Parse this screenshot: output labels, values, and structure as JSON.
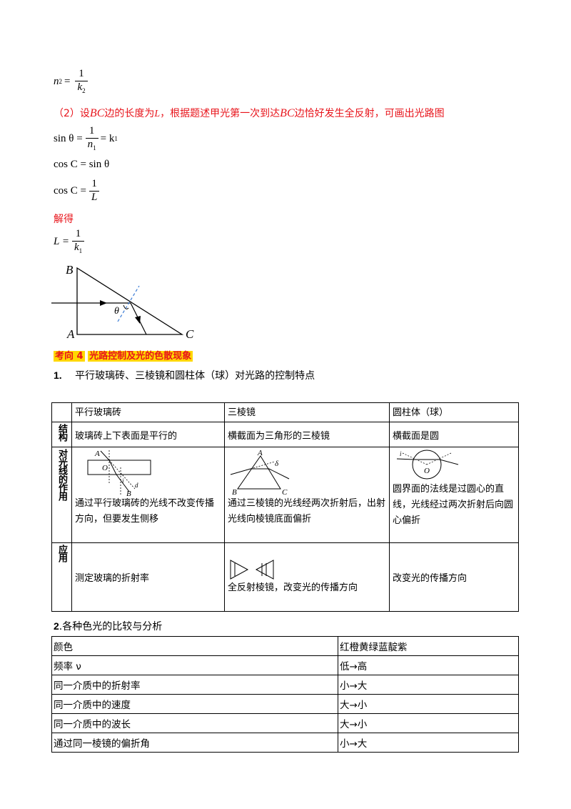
{
  "formulas": {
    "n2_lhs": "n",
    "n2_sub": "2",
    "n2_num": "1",
    "n2_den": "k",
    "n2_den_sub": "2",
    "sin_lhs": "sin θ =",
    "sin_num": "1",
    "sin_den": "n",
    "sin_den_sub": "1",
    "sin_rhs": "= k",
    "sin_rhs_sub": "1",
    "cos1": "cos C = sin θ",
    "cos2_lhs": "cos C =",
    "cos2_num": "1",
    "cos2_den": "L",
    "L_lhs": "L =",
    "L_num": "1",
    "L_den": "k",
    "L_den_sub": "1"
  },
  "part2": {
    "pre": "（2）设",
    "bc1": "BC",
    "mid1": "边的长度为",
    "L": "L",
    "mid2": "，根据题述甲光第一次到达",
    "bc2": "BC",
    "post": "边恰好发生全反射，可画出光路图"
  },
  "solve_label": "解得",
  "diagram": {
    "label_B": "B",
    "label_A": "A",
    "label_C": "C",
    "label_theta": "θ"
  },
  "section4": {
    "tag": "考向 4",
    "title": "光路控制及光的色散现象"
  },
  "item1": {
    "num": "1.",
    "text": "平行玻璃砖、三棱镜和圆柱体（球）对光路的控制特点"
  },
  "table1": {
    "headers": [
      "平行玻璃砖",
      "三棱镜",
      "圆柱体（球）"
    ],
    "row_structure": {
      "label": "结构",
      "cells": [
        "玻璃砖上下表面是平行的",
        "横截面为三角形的三棱镜",
        "横截面是圆"
      ]
    },
    "row_effect": {
      "label": "对光线的作用",
      "cells": [
        "通过平行玻璃砖的光线不改变传播方向，但要发生侧移",
        "通过三棱镜的光线经两次折射后，出射光线向棱镜底面偏折",
        "圆界面的法线是过圆心的直线，光线经过两次折射后向圆心偏折"
      ]
    },
    "row_apply": {
      "label": "应用",
      "cells": [
        "测定玻璃的折射率",
        "全反射棱镜，改变光的传播方向",
        "改变光的传播方向"
      ]
    },
    "fig_labels": {
      "A": "A",
      "O": "O",
      "B": "B",
      "i": "i",
      "d": "d",
      "prism_A": "A",
      "prism_B": "B",
      "prism_C": "C",
      "delta": "δ",
      "circle_O": "O",
      "circle_i": "i"
    }
  },
  "item2": {
    "num": "2",
    "text": ".各种色光的比较与分析"
  },
  "table2": {
    "rows": [
      [
        "颜色",
        "红橙黄绿蓝靛紫"
      ],
      [
        "频率 ν",
        "低→高"
      ],
      [
        "同一介质中的折射率",
        "小→大"
      ],
      [
        "同一介质中的速度",
        "大→小"
      ],
      [
        "同一介质中的波长",
        "大→小"
      ],
      [
        "通过同一棱镜的偏折角",
        "小→大"
      ]
    ]
  }
}
